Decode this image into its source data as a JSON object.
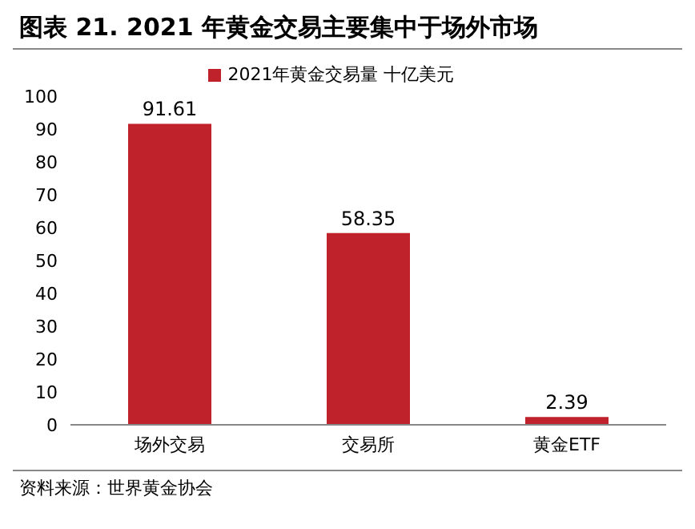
{
  "chart_data": {
    "type": "bar",
    "title": "图表 21. 2021 年黄金交易主要集中于场外市场",
    "categories": [
      "场外交易",
      "交易所",
      "黄金ETF"
    ],
    "series": [
      {
        "name": "2021年黄金交易量 十亿美元",
        "color": "#c0222c",
        "values": [
          91.61,
          58.35,
          2.39
        ]
      }
    ],
    "ylim": [
      0,
      100
    ],
    "yticks": [
      0,
      10,
      20,
      30,
      40,
      50,
      60,
      70,
      80,
      90,
      100
    ],
    "grid": false,
    "legend": "top",
    "data_labels": true,
    "annotations": [
      "资料来源：世界黄金协会"
    ]
  }
}
